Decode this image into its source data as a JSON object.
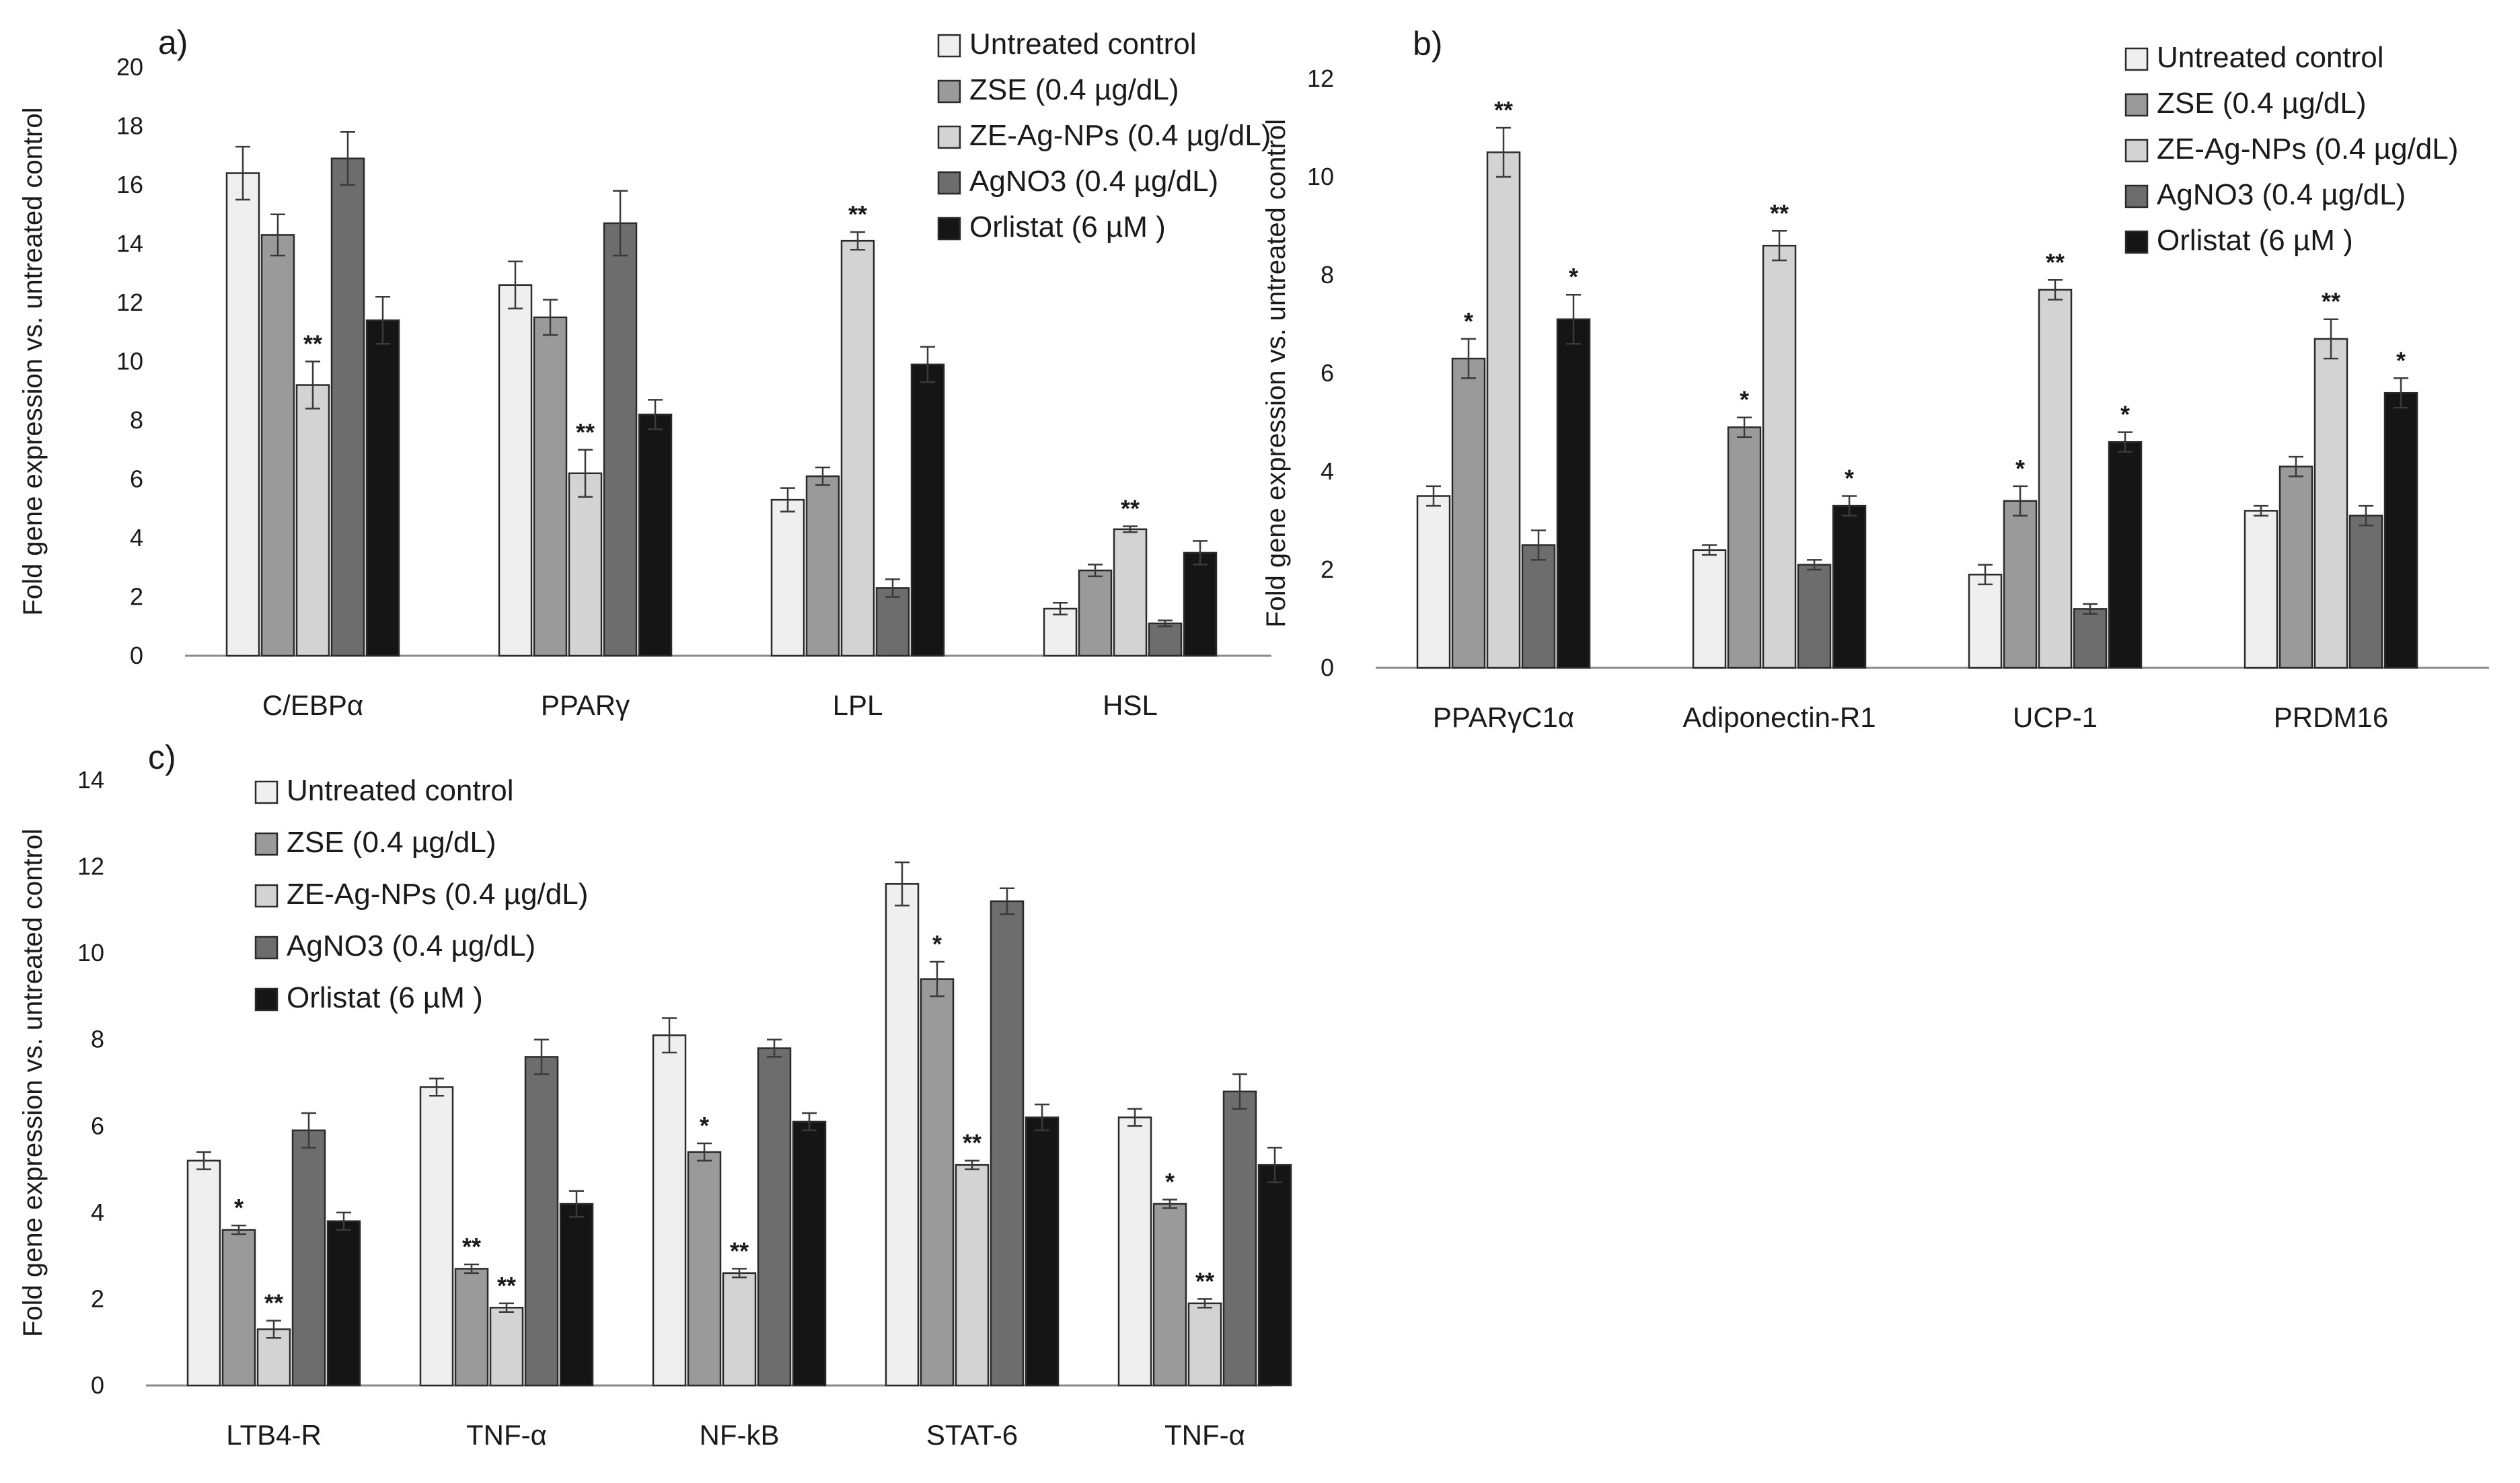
{
  "figure": {
    "background": "#ffffff",
    "series_colors": [
      "#efefef",
      "#9a9a9a",
      "#d3d3d3",
      "#6d6d6d",
      "#151515"
    ],
    "bar_stroke": "#2a2a2a"
  },
  "chart_data": [
    {
      "id": "a",
      "type": "bar",
      "panel_label": "a)",
      "ylabel": "Fold gene expression vs. untreated control",
      "xlabel": "",
      "ylim": [
        0,
        20
      ],
      "yticks": [
        0,
        2,
        4,
        6,
        8,
        10,
        12,
        14,
        16,
        18,
        20
      ],
      "grid": false,
      "legend_position": "top-right",
      "categories": [
        "C/EBPα",
        "PPARγ",
        "LPL",
        "HSL"
      ],
      "series": [
        {
          "name": "Untreated control",
          "values": [
            16.4,
            12.6,
            5.3,
            1.6
          ],
          "errors": [
            0.9,
            0.8,
            0.4,
            0.2
          ],
          "stars": [
            "",
            "",
            "",
            ""
          ]
        },
        {
          "name": "ZSE (0.4 µg/dL)",
          "values": [
            14.3,
            11.5,
            6.1,
            2.9
          ],
          "errors": [
            0.7,
            0.6,
            0.3,
            0.2
          ],
          "stars": [
            "",
            "",
            "",
            ""
          ]
        },
        {
          "name": "ZE-Ag-NPs (0.4 µg/dL)",
          "values": [
            9.2,
            6.2,
            14.1,
            4.3
          ],
          "errors": [
            0.8,
            0.8,
            0.3,
            0.1
          ],
          "stars": [
            "**",
            "**",
            "**",
            "**"
          ]
        },
        {
          "name": "AgNO3 (0.4 µg/dL)",
          "values": [
            16.9,
            14.7,
            2.3,
            1.1
          ],
          "errors": [
            0.9,
            1.1,
            0.3,
            0.1
          ],
          "stars": [
            "",
            "",
            "",
            ""
          ]
        },
        {
          "name": "Orlistat (6 µM )",
          "values": [
            11.4,
            8.2,
            9.9,
            3.5
          ],
          "errors": [
            0.8,
            0.5,
            0.6,
            0.4
          ],
          "stars": [
            "",
            "",
            "",
            ""
          ]
        }
      ]
    },
    {
      "id": "b",
      "type": "bar",
      "panel_label": "b)",
      "ylabel": "Fold gene expression vs. untreated control",
      "xlabel": "",
      "ylim": [
        0,
        12
      ],
      "yticks": [
        0,
        2,
        4,
        6,
        8,
        10,
        12
      ],
      "grid": false,
      "legend_position": "top-right",
      "categories": [
        "PPARγC1α",
        "Adiponectin-R1",
        "UCP-1",
        "PRDM16"
      ],
      "series": [
        {
          "name": "Untreated control",
          "values": [
            3.5,
            2.4,
            1.9,
            3.2
          ],
          "errors": [
            0.2,
            0.1,
            0.2,
            0.1
          ],
          "stars": [
            "",
            "",
            "",
            ""
          ]
        },
        {
          "name": "ZSE (0.4 µg/dL)",
          "values": [
            6.3,
            4.9,
            3.4,
            4.1
          ],
          "errors": [
            0.4,
            0.2,
            0.3,
            0.2
          ],
          "stars": [
            "*",
            "*",
            "*",
            ""
          ]
        },
        {
          "name": "ZE-Ag-NPs (0.4 µg/dL)",
          "values": [
            10.5,
            8.6,
            7.7,
            6.7
          ],
          "errors": [
            0.5,
            0.3,
            0.2,
            0.4
          ],
          "stars": [
            "**",
            "**",
            "**",
            "**"
          ]
        },
        {
          "name": "AgNO3 (0.4 µg/dL)",
          "values": [
            2.5,
            2.1,
            1.2,
            3.1
          ],
          "errors": [
            0.3,
            0.1,
            0.1,
            0.2
          ],
          "stars": [
            "",
            "",
            "",
            ""
          ]
        },
        {
          "name": "Orlistat (6 µM )",
          "values": [
            7.1,
            3.3,
            4.6,
            5.6
          ],
          "errors": [
            0.5,
            0.2,
            0.2,
            0.3
          ],
          "stars": [
            "*",
            "*",
            "*",
            "*"
          ]
        }
      ]
    },
    {
      "id": "c",
      "type": "bar",
      "panel_label": "c)",
      "ylabel": "Fold gene expression vs. untreated control",
      "xlabel": "",
      "ylim": [
        0,
        14
      ],
      "yticks": [
        0,
        2,
        4,
        6,
        8,
        10,
        12,
        14
      ],
      "grid": false,
      "legend_position": "top-left",
      "categories": [
        "LTB4-R",
        "TNF-α",
        "NF-kB",
        "STAT-6",
        "TNF-α"
      ],
      "series": [
        {
          "name": "Untreated control",
          "values": [
            5.2,
            6.9,
            8.1,
            11.6,
            6.2
          ],
          "errors": [
            0.2,
            0.2,
            0.4,
            0.5,
            0.2
          ],
          "stars": [
            "",
            "",
            "",
            "",
            ""
          ]
        },
        {
          "name": "ZSE (0.4 µg/dL)",
          "values": [
            3.6,
            2.7,
            5.4,
            9.4,
            4.2
          ],
          "errors": [
            0.1,
            0.1,
            0.2,
            0.4,
            0.1
          ],
          "stars": [
            "*",
            "**",
            "*",
            "*",
            "*"
          ]
        },
        {
          "name": "ZE-Ag-NPs (0.4 µg/dL)",
          "values": [
            1.3,
            1.8,
            2.6,
            5.1,
            1.9
          ],
          "errors": [
            0.2,
            0.1,
            0.1,
            0.1,
            0.1
          ],
          "stars": [
            "**",
            "**",
            "**",
            "**",
            "**"
          ]
        },
        {
          "name": "AgNO3 (0.4 µg/dL)",
          "values": [
            5.9,
            7.6,
            7.8,
            11.2,
            6.8
          ],
          "errors": [
            0.4,
            0.4,
            0.2,
            0.3,
            0.4
          ],
          "stars": [
            "",
            "",
            "",
            "",
            ""
          ]
        },
        {
          "name": "Orlistat (6 µM )",
          "values": [
            3.8,
            4.2,
            6.1,
            6.2,
            5.1
          ],
          "errors": [
            0.2,
            0.3,
            0.2,
            0.3,
            0.4
          ],
          "stars": [
            "",
            "",
            "",
            "",
            ""
          ]
        }
      ]
    }
  ]
}
